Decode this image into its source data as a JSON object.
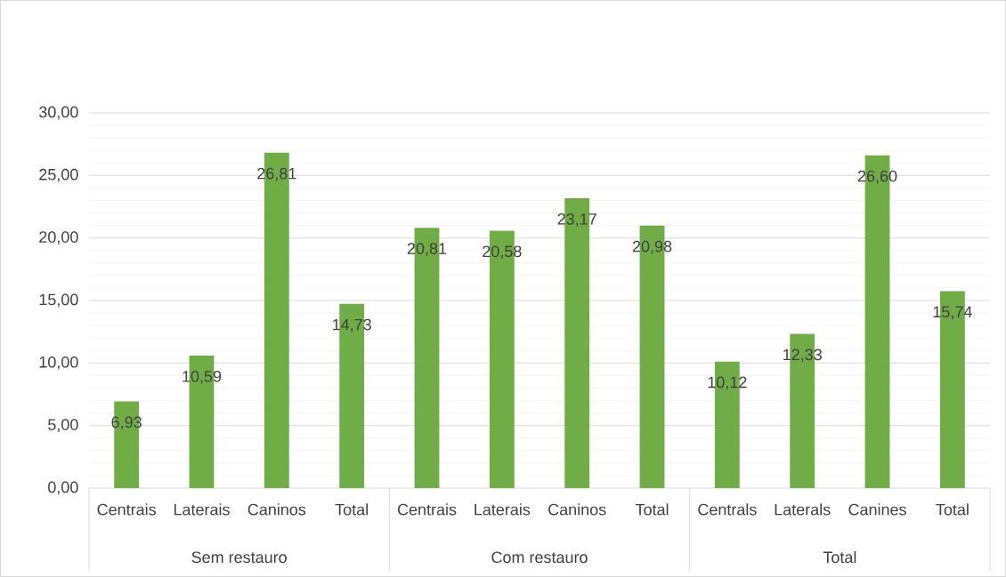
{
  "chart_data": {
    "type": "bar",
    "categories": [
      "Centrais",
      "Laterais",
      "Caninos",
      "Total",
      "Centrais",
      "Laterais",
      "Caninos",
      "Total",
      "Centrals",
      "Laterals",
      "Canines",
      "Total"
    ],
    "values": [
      6.93,
      10.59,
      26.81,
      14.73,
      20.81,
      20.58,
      23.17,
      20.98,
      10.12,
      12.33,
      26.6,
      15.74
    ],
    "value_labels": [
      "6,93",
      "10,59",
      "26,81",
      "14,73",
      "20,81",
      "20,58",
      "23,17",
      "20,98",
      "10,12",
      "12,33",
      "26,60",
      "15,74"
    ],
    "color": "#70ad47",
    "annotations": [
      "Sem restauro",
      "Com restauro",
      "Total"
    ],
    "ylim": [
      0,
      30
    ],
    "yticks": [
      {
        "value": 0,
        "label": "0,00"
      },
      {
        "value": 5,
        "label": "5,00"
      },
      {
        "value": 10,
        "label": "10,00"
      },
      {
        "value": 15,
        "label": "15,00"
      },
      {
        "value": 20,
        "label": "20,00"
      },
      {
        "value": 25,
        "label": "25,00"
      },
      {
        "value": 30,
        "label": "30,00"
      }
    ],
    "grid": "y"
  }
}
